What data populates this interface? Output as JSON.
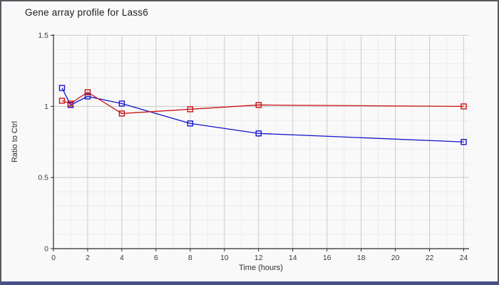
{
  "chart_data": {
    "type": "line",
    "title": "Gene array profile for Lass6",
    "xlabel": "Time (hours)",
    "ylabel": "Ratio to Ctrl",
    "xlim": [
      0,
      24
    ],
    "ylim": [
      0,
      1.5
    ],
    "x_tick_labels": [
      "0",
      "2",
      "4",
      "6",
      "8",
      "10",
      "12",
      "14",
      "16",
      "18",
      "20",
      "22",
      "24"
    ],
    "y_tick_labels": [
      "0",
      "0.5",
      "1",
      "1.5"
    ],
    "x_minor_step": 1,
    "y_minor_step": 0.1,
    "grid": "on",
    "legend": "none",
    "marker": "open-square",
    "x": [
      0.5,
      1,
      2,
      4,
      8,
      12,
      24
    ],
    "series": [
      {
        "name": "blue-series",
        "color": "#1414cc",
        "values": [
          1.13,
          1.01,
          1.07,
          1.02,
          0.88,
          0.81,
          0.75
        ]
      },
      {
        "name": "red-series",
        "color": "#cc1414",
        "values": [
          1.04,
          1.02,
          1.1,
          0.95,
          0.98,
          1.01,
          1.0
        ]
      }
    ],
    "frame_colors": {
      "border": "#595a60",
      "bottom_bar": "#47518a",
      "minor_grid": "#ebebec",
      "major_grid": "#cccccc",
      "axis": "#2a2a2a"
    }
  }
}
